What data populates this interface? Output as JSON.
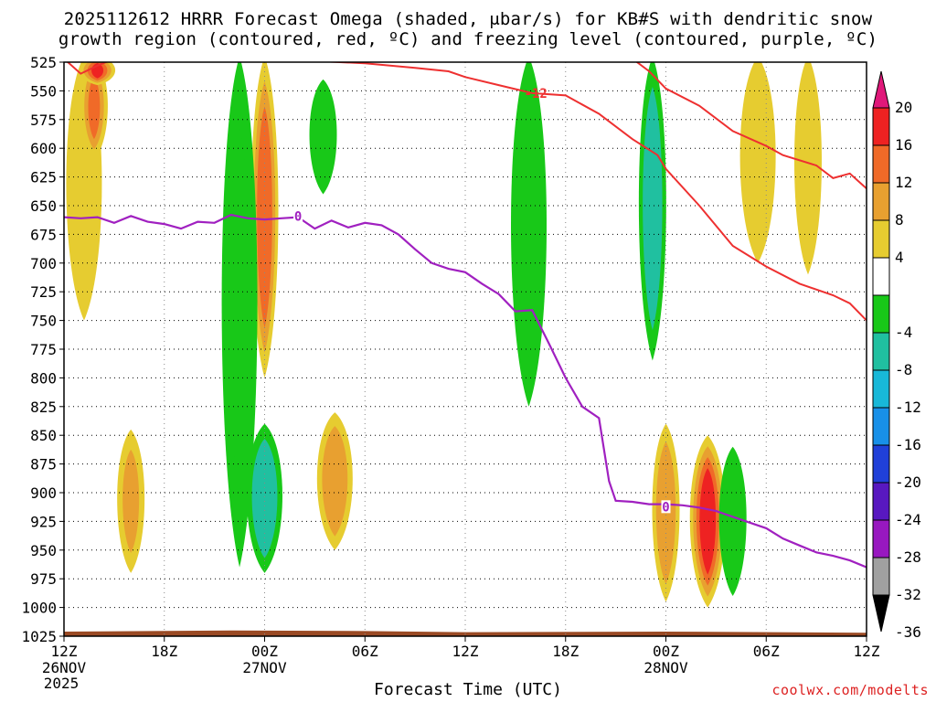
{
  "titles": {
    "line1": "2025112612 HRRR Forecast Omega (shaded, μbar/s) for KB#S with dendritic snow",
    "line2": "growth region (contoured, red, ºC) and freezing level (contoured, purple, ºC)"
  },
  "footer": {
    "xlabel": "Forecast Time (UTC)",
    "credit": "coolwx.com/modelts"
  },
  "chart_data": {
    "type": "heatmap",
    "title": "2025112612 HRRR Forecast Omega (shaded, μbar/s) for KB#S with dendritic snow growth region (contoured, red, ºC) and freezing level (contoured, purple, ºC)",
    "xlabel": "Forecast Time (UTC)",
    "ylabel": "",
    "x_range_hours": [
      0,
      48
    ],
    "y_range_mb": [
      1025,
      525
    ],
    "y_ticks": [
      525,
      550,
      575,
      600,
      625,
      650,
      675,
      700,
      725,
      750,
      775,
      800,
      825,
      850,
      875,
      900,
      925,
      950,
      975,
      1000,
      1025
    ],
    "x_ticks": [
      {
        "hour": 0,
        "label": "12Z",
        "sub": "26NOV",
        "sub2": "2025"
      },
      {
        "hour": 6,
        "label": "18Z"
      },
      {
        "hour": 12,
        "label": "00Z",
        "sub": "27NOV"
      },
      {
        "hour": 18,
        "label": "06Z"
      },
      {
        "hour": 24,
        "label": "12Z"
      },
      {
        "hour": 30,
        "label": "18Z"
      },
      {
        "hour": 36,
        "label": "00Z",
        "sub": "28NOV"
      },
      {
        "hour": 42,
        "label": "06Z"
      },
      {
        "hour": 48,
        "label": "12Z"
      }
    ],
    "colorbar": {
      "labels": [
        "20",
        "16",
        "12",
        "8",
        "4",
        "-4",
        "-8",
        "-12",
        "-16",
        "-20",
        "-24",
        "-28",
        "-32",
        "-36"
      ],
      "bins": [
        {
          "from": 20,
          "to": 24,
          "color": "#e0187a"
        },
        {
          "from": 16,
          "to": 20,
          "color": "#ee2222"
        },
        {
          "from": 12,
          "to": 16,
          "color": "#f06a28"
        },
        {
          "from": 8,
          "to": 12,
          "color": "#e8a030"
        },
        {
          "from": 4,
          "to": 8,
          "color": "#e6cc30"
        },
        {
          "from": -4,
          "to": 4,
          "color": "#ffffff"
        },
        {
          "from": -8,
          "to": -4,
          "color": "#18c818"
        },
        {
          "from": -12,
          "to": -8,
          "color": "#20c0a0"
        },
        {
          "from": -16,
          "to": -12,
          "color": "#18b8d8"
        },
        {
          "from": -20,
          "to": -16,
          "color": "#1890e8"
        },
        {
          "from": -24,
          "to": -20,
          "color": "#2040d8"
        },
        {
          "from": -28,
          "to": -24,
          "color": "#5818c0"
        },
        {
          "from": -32,
          "to": -28,
          "color": "#9818c0"
        },
        {
          "from": -36,
          "to": -32,
          "color": "#a0a0a0"
        },
        {
          "from": -40,
          "to": -36,
          "color": "#000000"
        }
      ]
    },
    "dgz_contours": {
      "color": "#ee3030",
      "label": "-12",
      "label_at": {
        "hour": 28,
        "p": 552
      },
      "upper_line": [
        [
          0,
          522
        ],
        [
          1,
          535
        ],
        [
          2,
          528
        ],
        [
          3,
          522
        ],
        [
          6,
          521
        ],
        [
          9,
          521
        ],
        [
          12,
          521
        ],
        [
          15,
          524
        ],
        [
          18,
          526
        ],
        [
          21,
          530
        ],
        [
          23,
          533
        ],
        [
          24,
          538
        ],
        [
          26,
          545
        ],
        [
          28,
          552
        ],
        [
          30,
          554
        ],
        [
          32,
          570
        ],
        [
          34,
          592
        ],
        [
          35.5,
          606
        ],
        [
          36,
          618
        ],
        [
          38,
          650
        ],
        [
          40,
          685
        ],
        [
          42,
          703
        ],
        [
          44,
          718
        ],
        [
          46,
          728
        ],
        [
          47,
          735
        ],
        [
          48,
          750
        ]
      ],
      "lower_line": [
        [
          34,
          522
        ],
        [
          35,
          533
        ],
        [
          36,
          548
        ],
        [
          38,
          563
        ],
        [
          40,
          585
        ],
        [
          42,
          598
        ],
        [
          43,
          606
        ],
        [
          45,
          615
        ],
        [
          46,
          626
        ],
        [
          47,
          622
        ],
        [
          48,
          635
        ]
      ]
    },
    "freezing_level": {
      "color": "#a020c0",
      "label": "0",
      "label_positions": [
        {
          "hour": 14,
          "p": 660
        },
        {
          "hour": 36,
          "p": 913
        }
      ],
      "points": [
        [
          0,
          660
        ],
        [
          1,
          661
        ],
        [
          2,
          660
        ],
        [
          3,
          665
        ],
        [
          4,
          659
        ],
        [
          5,
          664
        ],
        [
          6,
          666
        ],
        [
          7,
          670
        ],
        [
          8,
          664
        ],
        [
          9,
          665
        ],
        [
          10,
          658
        ],
        [
          11,
          661
        ],
        [
          12,
          662
        ],
        [
          13,
          661
        ],
        [
          14,
          660
        ],
        [
          15,
          670
        ],
        [
          16,
          663
        ],
        [
          17,
          669
        ],
        [
          18,
          665
        ],
        [
          19,
          667
        ],
        [
          20,
          675
        ],
        [
          21,
          688
        ],
        [
          22,
          700
        ],
        [
          23,
          705
        ],
        [
          24,
          708
        ],
        [
          25,
          718
        ],
        [
          26,
          727
        ],
        [
          27,
          742
        ],
        [
          28,
          741
        ],
        [
          29,
          770
        ],
        [
          30,
          800
        ],
        [
          31,
          825
        ],
        [
          32,
          835
        ],
        [
          32.6,
          890
        ],
        [
          33,
          907
        ],
        [
          34,
          908
        ],
        [
          35,
          910
        ],
        [
          36,
          910
        ],
        [
          37,
          911
        ],
        [
          38,
          913
        ],
        [
          39,
          916
        ],
        [
          40,
          921
        ],
        [
          41,
          926
        ],
        [
          42,
          931
        ],
        [
          43,
          940
        ],
        [
          44,
          946
        ],
        [
          45,
          952
        ],
        [
          46,
          955
        ],
        [
          47,
          959
        ],
        [
          48,
          965
        ]
      ]
    },
    "omega_features": [
      {
        "hour": 1.2,
        "p_top": 520,
        "p_bot": 750,
        "value": 6,
        "note": "yellow upward motion"
      },
      {
        "hour": 1.8,
        "p_top": 520,
        "p_bot": 610,
        "value": 12,
        "note": "orange core"
      },
      {
        "hour": 2.0,
        "p_top": 520,
        "p_bot": 545,
        "value": 16,
        "note": "red core"
      },
      {
        "hour": 12.0,
        "p_top": 520,
        "p_bot": 800,
        "value": 14,
        "note": "orange/red column"
      },
      {
        "hour": 10.5,
        "p_top": 520,
        "p_bot": 965,
        "value": -6,
        "note": "green downward motion"
      },
      {
        "hour": 15.5,
        "p_top": 540,
        "p_bot": 640,
        "value": -6
      },
      {
        "hour": 27.8,
        "p_top": 520,
        "p_bot": 825,
        "value": -6
      },
      {
        "hour": 35.2,
        "p_top": 520,
        "p_bot": 785,
        "value": -10
      },
      {
        "hour": 41.5,
        "p_top": 520,
        "p_bot": 700,
        "value": 6
      },
      {
        "hour": 44.5,
        "p_top": 520,
        "p_bot": 710,
        "value": 6
      },
      {
        "hour": 12.0,
        "p_top": 840,
        "p_bot": 970,
        "value": -12,
        "note": "low-level teal core"
      },
      {
        "hour": 4.0,
        "p_top": 845,
        "p_bot": 970,
        "value": 8
      },
      {
        "hour": 16.2,
        "p_top": 830,
        "p_bot": 950,
        "value": 10
      },
      {
        "hour": 36.0,
        "p_top": 840,
        "p_bot": 995,
        "value": 10
      },
      {
        "hour": 38.5,
        "p_top": 850,
        "p_bot": 1000,
        "value": 18,
        "note": "red core"
      },
      {
        "hour": 40.0,
        "p_top": 860,
        "p_bot": 990,
        "value": -8
      }
    ]
  }
}
